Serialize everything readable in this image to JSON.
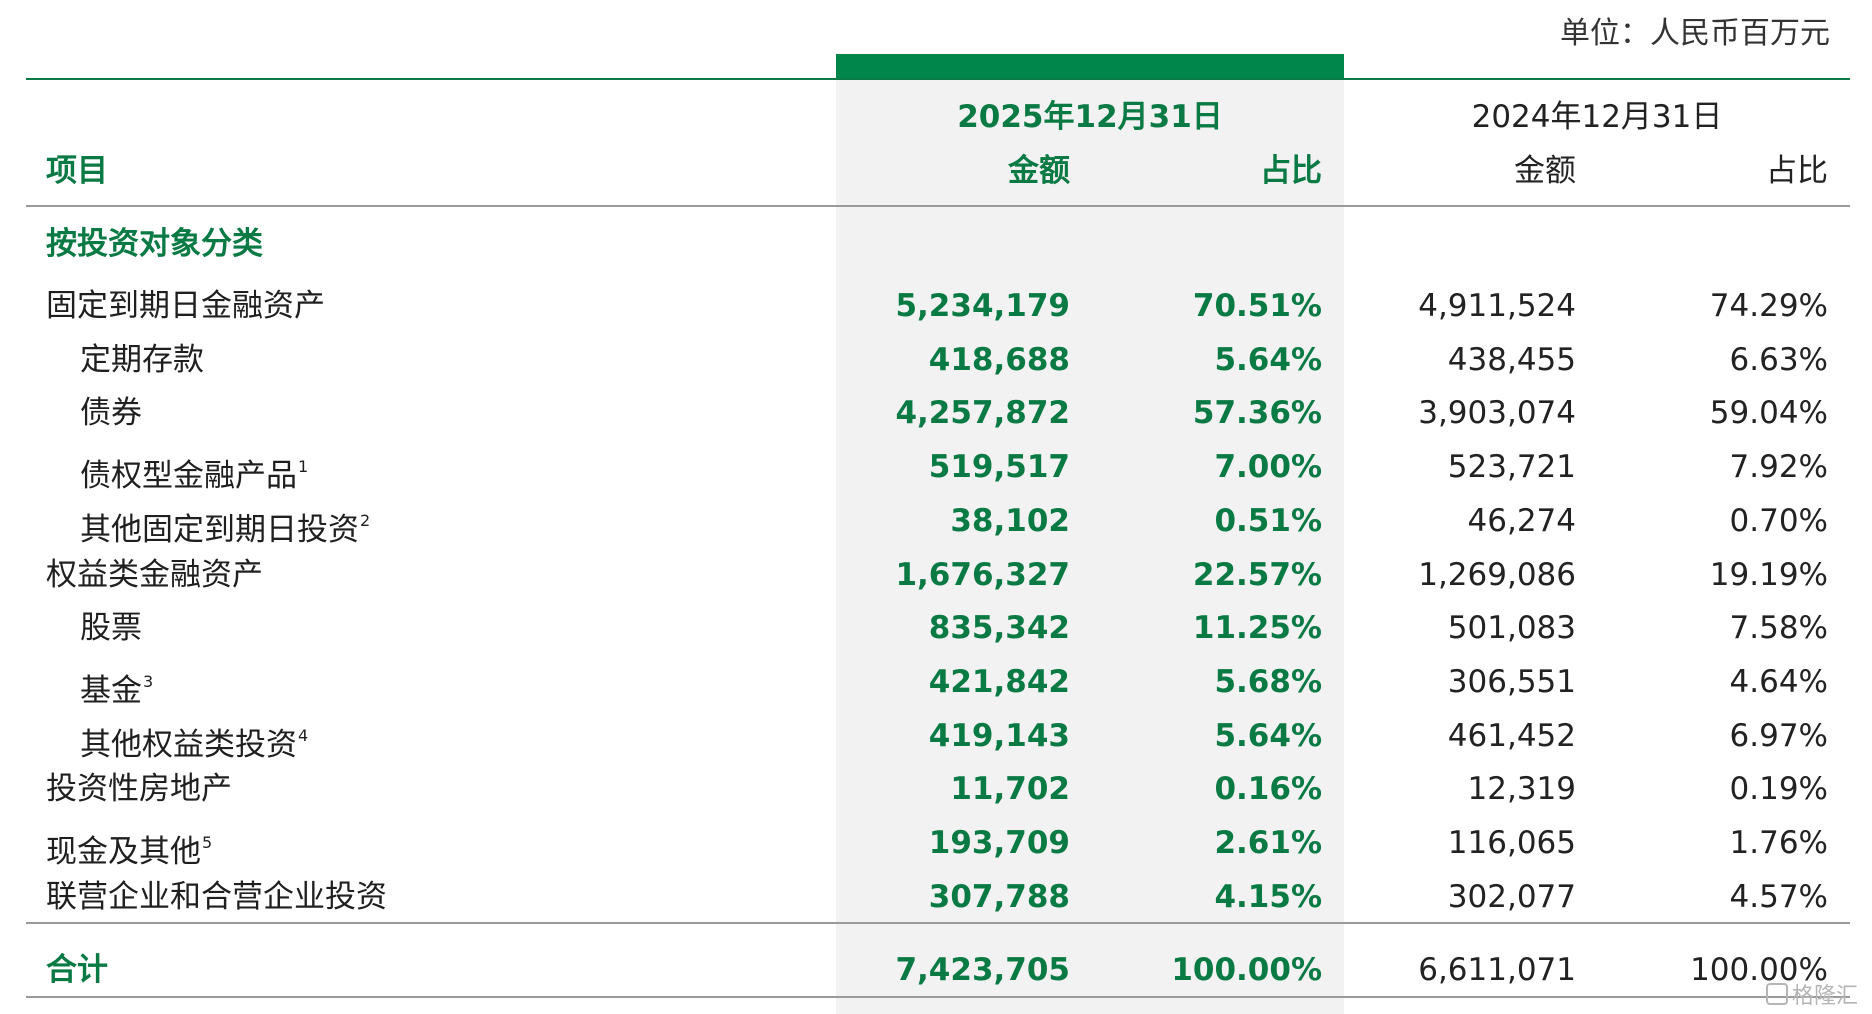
{
  "unit": "单位：人民币百万元",
  "header": {
    "item_label": "项目",
    "current_date": "2025年12月31日",
    "previous_date": "2024年12月31日",
    "amount_label": "金额",
    "ratio_label": "占比"
  },
  "section_title": "按投资对象分类",
  "rows": [
    {
      "label": "固定到期日金融资产",
      "note": "",
      "sub": false,
      "cur_amount": "5,234,179",
      "cur_ratio": "70.51%",
      "prev_amount": "4,911,524",
      "prev_ratio": "74.29%"
    },
    {
      "label": "定期存款",
      "note": "",
      "sub": true,
      "cur_amount": "418,688",
      "cur_ratio": "5.64%",
      "prev_amount": "438,455",
      "prev_ratio": "6.63%"
    },
    {
      "label": "债券",
      "note": "",
      "sub": true,
      "cur_amount": "4,257,872",
      "cur_ratio": "57.36%",
      "prev_amount": "3,903,074",
      "prev_ratio": "59.04%"
    },
    {
      "label": "债权型金融产品",
      "note": "1",
      "sub": true,
      "cur_amount": "519,517",
      "cur_ratio": "7.00%",
      "prev_amount": "523,721",
      "prev_ratio": "7.92%"
    },
    {
      "label": "其他固定到期日投资",
      "note": "2",
      "sub": true,
      "cur_amount": "38,102",
      "cur_ratio": "0.51%",
      "prev_amount": "46,274",
      "prev_ratio": "0.70%"
    },
    {
      "label": "权益类金融资产",
      "note": "",
      "sub": false,
      "cur_amount": "1,676,327",
      "cur_ratio": "22.57%",
      "prev_amount": "1,269,086",
      "prev_ratio": "19.19%"
    },
    {
      "label": "股票",
      "note": "",
      "sub": true,
      "cur_amount": "835,342",
      "cur_ratio": "11.25%",
      "prev_amount": "501,083",
      "prev_ratio": "7.58%"
    },
    {
      "label": "基金",
      "note": "3",
      "sub": true,
      "cur_amount": "421,842",
      "cur_ratio": "5.68%",
      "prev_amount": "306,551",
      "prev_ratio": "4.64%"
    },
    {
      "label": "其他权益类投资",
      "note": "4",
      "sub": true,
      "cur_amount": "419,143",
      "cur_ratio": "5.64%",
      "prev_amount": "461,452",
      "prev_ratio": "6.97%"
    },
    {
      "label": "投资性房地产",
      "note": "",
      "sub": false,
      "cur_amount": "11,702",
      "cur_ratio": "0.16%",
      "prev_amount": "12,319",
      "prev_ratio": "0.19%"
    },
    {
      "label": "现金及其他",
      "note": "5",
      "sub": false,
      "cur_amount": "193,709",
      "cur_ratio": "2.61%",
      "prev_amount": "116,065",
      "prev_ratio": "1.76%"
    },
    {
      "label": "联营企业和合营企业投资",
      "note": "",
      "sub": false,
      "cur_amount": "307,788",
      "cur_ratio": "4.15%",
      "prev_amount": "302,077",
      "prev_ratio": "4.57%"
    }
  ],
  "total": {
    "label": "合计",
    "cur_amount": "7,423,705",
    "cur_ratio": "100.00%",
    "prev_amount": "6,611,071",
    "prev_ratio": "100.00%"
  },
  "watermark": "格隆汇",
  "colors": {
    "accent": "#0a7a45",
    "band": "#f2f2f2",
    "bar": "#00854a"
  }
}
